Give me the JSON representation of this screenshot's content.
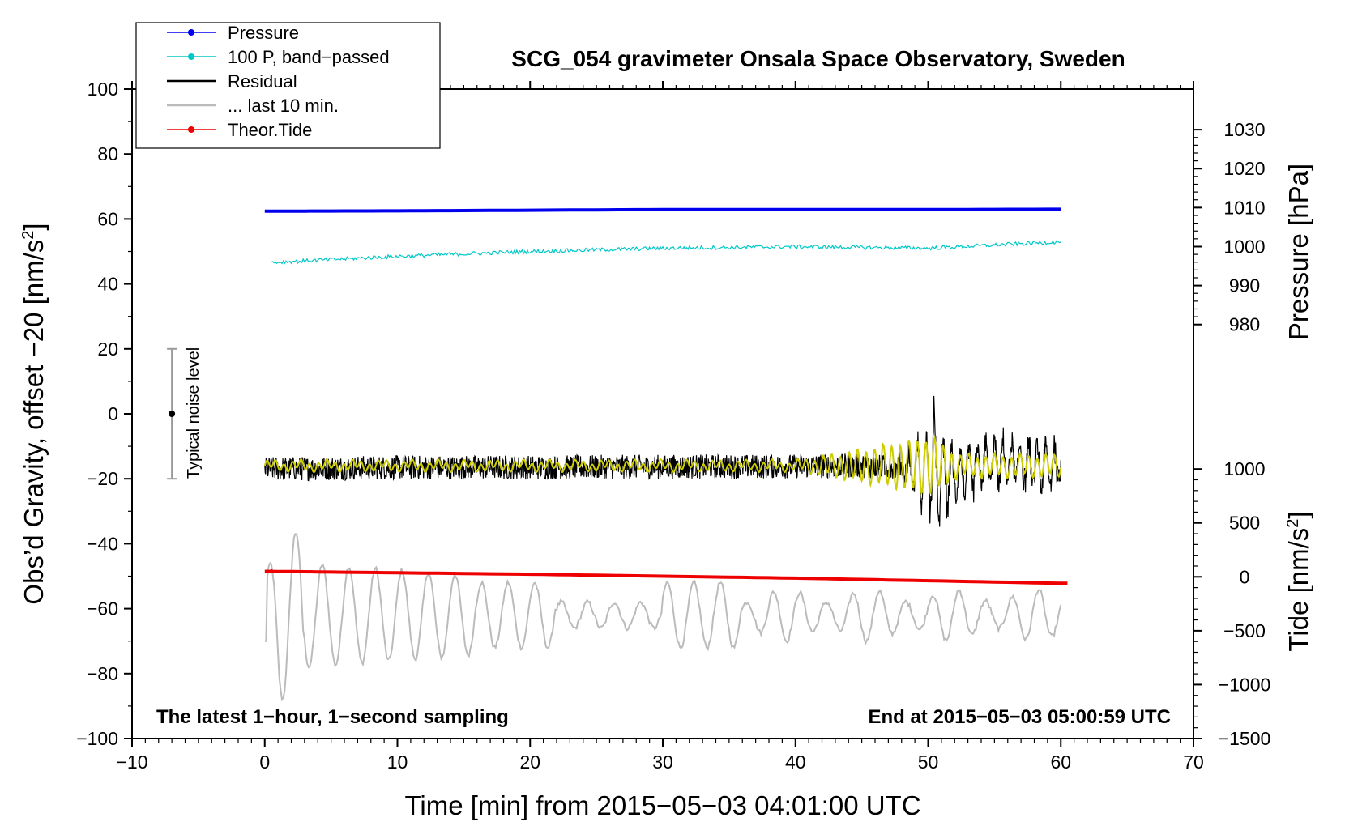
{
  "chart_data": {
    "type": "line",
    "title": "SCG_054 gravimeter Onsala Space Observatory, Sweden",
    "xlabel": "Time [min] from 2015−05−03 04:01:00 UTC",
    "ylabel_left_main": "Obs’d Gravity, offset −20 [nm/s",
    "ylabel_left_sup": "2",
    "ylabel_left_tail": "]",
    "ylabel_right_pressure": "Pressure [hPa]",
    "ylabel_right_tide_main": "Tide [nm/s",
    "ylabel_right_tide_sup": "2",
    "ylabel_right_tide_tail": "]",
    "xlim": [
      -10,
      70
    ],
    "ylim": [
      -100,
      100
    ],
    "x_ticks": [
      -10,
      0,
      10,
      20,
      30,
      40,
      50,
      60,
      70
    ],
    "x_tick_labels": [
      "−10",
      "0",
      "10",
      "20",
      "30",
      "40",
      "50",
      "60",
      "70"
    ],
    "y_ticks": [
      -100,
      -80,
      -60,
      -40,
      -20,
      0,
      20,
      40,
      60,
      80,
      100
    ],
    "y_tick_labels": [
      "−100",
      "−80",
      "−60",
      "−40",
      "−20",
      "0",
      "20",
      "40",
      "60",
      "80",
      "100"
    ],
    "pressure_axis": {
      "ticks": [
        980,
        990,
        1000,
        1010,
        1020,
        1030
      ],
      "tick_labels": [
        "980",
        "990",
        "1000",
        "1010",
        "1020",
        "1030"
      ],
      "mapping_hpa_to_left": [
        [
          980,
          27.5
        ],
        [
          1030,
          87.5
        ]
      ]
    },
    "tide_axis": {
      "ticks": [
        -1500,
        -1000,
        -500,
        0,
        500,
        1000
      ],
      "tick_labels": [
        "−1500",
        "−1000",
        "−500",
        "0",
        "500",
        "1000"
      ],
      "mapping_tide_to_left": [
        [
          -1500,
          -100
        ],
        [
          1000,
          -17
        ]
      ]
    },
    "series": [
      {
        "name": "Pressure",
        "color": "#0000ee",
        "x": [
          0,
          10,
          20,
          30,
          40,
          50,
          60
        ],
        "y": [
          62.4,
          62.5,
          62.7,
          62.9,
          62.9,
          62.9,
          63.0
        ]
      },
      {
        "name": "100 P, band−passed",
        "color": "#00c8c8",
        "x": [
          0,
          10,
          20,
          30,
          40,
          50,
          60
        ],
        "y": [
          46.5,
          48.5,
          50.0,
          51.0,
          51.5,
          51.0,
          53.0
        ]
      },
      {
        "name": "Residual",
        "color": "#000000",
        "x": [
          0,
          10,
          20,
          30,
          40,
          45,
          50,
          51,
          55,
          60
        ],
        "y": [
          -17,
          -16.5,
          -16.5,
          -16.3,
          -16.2,
          -16,
          -17,
          -20,
          -15,
          -16
        ],
        "noise": 2.5,
        "burst_start_min": 45,
        "burst_peak_min": 50.3,
        "burst_max": 9,
        "burst_min": -42
      },
      {
        "name": "... last 10 min.",
        "color": "#bbbbbb",
        "x": [
          0,
          2.5,
          1.8,
          30,
          60
        ],
        "y": [
          -70,
          -37,
          -88,
          -62,
          -65
        ],
        "min": -88,
        "max": -37
      },
      {
        "name": "Theor.Tide",
        "color": "#ee0000",
        "x": [
          0,
          20,
          40,
          60
        ],
        "y": [
          -48.5,
          -49.4,
          -50.6,
          -52.2
        ]
      }
    ],
    "filtered_residual_color": "#cccc00",
    "noise_bar": {
      "label": "Typical noise level",
      "x": -7,
      "center": 0,
      "low": -20,
      "high": 20
    },
    "legend": [
      {
        "label": "Pressure",
        "color": "#0000ee",
        "marker": true
      },
      {
        "label": "100 P, band−passed",
        "color": "#00c8c8",
        "marker": true
      },
      {
        "label": "Residual",
        "color": "#000000",
        "marker": false
      },
      {
        "label": "... last 10 min.",
        "color": "#bbbbbb",
        "marker": false
      },
      {
        "label": "Theor.Tide",
        "color": "#ee0000",
        "marker": true
      }
    ],
    "legend_position": "top-left",
    "annotation_left": "The latest 1−hour, 1−second sampling",
    "annotation_right": "End at 2015−05−03 05:00:59 UTC",
    "grid": false
  }
}
